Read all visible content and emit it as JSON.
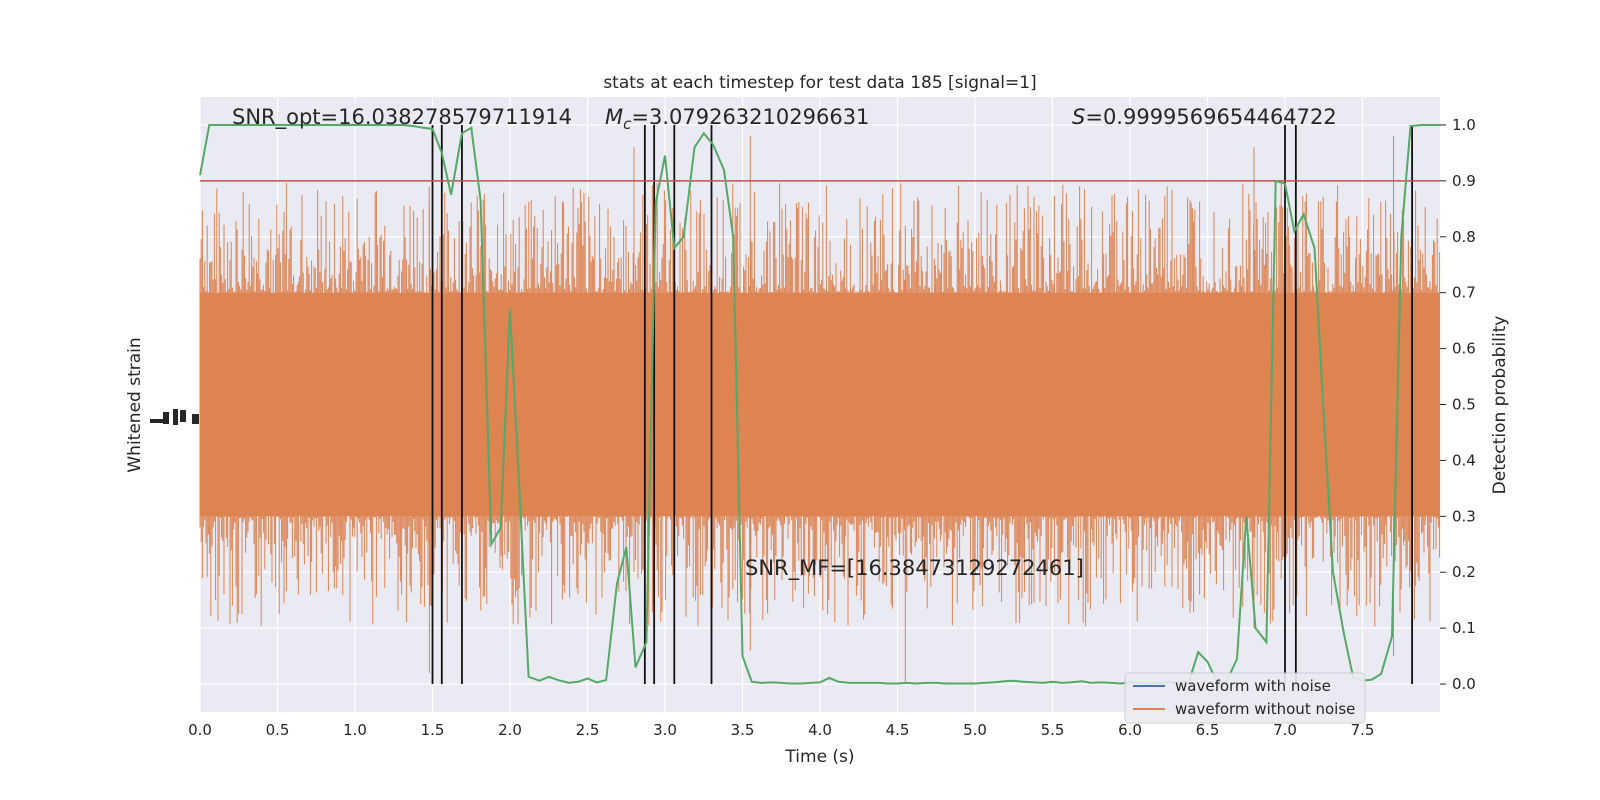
{
  "chart_data": {
    "type": "line",
    "title": "stats at each timestep for test data 185 [signal=1]",
    "xlabel": "Time (s)",
    "ylabel_left": "Whitened strain",
    "ylabel_right": "Detection probability",
    "xlim": [
      0.0,
      8.0
    ],
    "ylim_right": [
      -0.05,
      1.05
    ],
    "x_ticks": [
      "0.0",
      "0.5",
      "1.0",
      "1.5",
      "2.0",
      "2.5",
      "3.0",
      "3.5",
      "4.0",
      "4.5",
      "5.0",
      "5.5",
      "6.0",
      "6.5",
      "7.0",
      "7.5"
    ],
    "y_ticks_right": [
      "0.0",
      "0.1",
      "0.2",
      "0.3",
      "0.4",
      "0.5",
      "0.6",
      "0.7",
      "0.8",
      "0.9",
      "1.0"
    ],
    "grid": true,
    "threshold": 0.9,
    "annotations": {
      "snr_opt": "SNR_opt=16.038278579711914",
      "mc_symbol": "M",
      "mc_sub": "c",
      "mc_value": "=3.079263210296631",
      "s_symbol": "S",
      "s_value": "=0.9999569654464722",
      "snr_mf": "SNR_MF=[16.38473129272461]"
    },
    "legend": {
      "placement": "lower-right",
      "entries": [
        "waveform with noise",
        "waveform without noise"
      ]
    },
    "vertical_lines": [
      1.5,
      1.56,
      1.69,
      2.87,
      2.93,
      3.06,
      3.3,
      7.0,
      7.07,
      7.82
    ],
    "series": [
      {
        "name": "waveform without noise",
        "kind": "strain",
        "color": "#dd8452",
        "band": [
          0.3,
          0.7
        ],
        "extent": [
          0.0,
          1.0
        ]
      },
      {
        "name": "waveform with noise",
        "kind": "strain",
        "color": "#4c72b0"
      },
      {
        "kind": "probability",
        "color": "#55a868",
        "x": [
          0.0,
          0.06,
          0.12,
          0.19,
          0.25,
          0.31,
          0.38,
          0.44,
          0.5,
          0.56,
          0.62,
          0.69,
          0.75,
          0.81,
          0.88,
          0.94,
          1.0,
          1.06,
          1.12,
          1.19,
          1.25,
          1.31,
          1.38,
          1.44,
          1.5,
          1.56,
          1.62,
          1.69,
          1.75,
          1.81,
          1.88,
          1.94,
          2.0,
          2.06,
          2.12,
          2.19,
          2.25,
          2.31,
          2.38,
          2.44,
          2.5,
          2.56,
          2.62,
          2.69,
          2.75,
          2.81,
          2.88,
          2.94,
          3.0,
          3.06,
          3.12,
          3.19,
          3.25,
          3.31,
          3.38,
          3.44,
          3.5,
          3.56,
          3.62,
          3.69,
          3.75,
          3.81,
          3.88,
          3.94,
          4.0,
          4.06,
          4.12,
          4.19,
          4.25,
          4.31,
          4.38,
          4.44,
          4.5,
          4.56,
          4.62,
          4.69,
          4.75,
          4.81,
          4.88,
          4.94,
          5.0,
          5.06,
          5.12,
          5.19,
          5.25,
          5.31,
          5.38,
          5.44,
          5.5,
          5.56,
          5.62,
          5.69,
          5.75,
          5.81,
          5.88,
          5.94,
          6.0,
          6.06,
          6.12,
          6.19,
          6.25,
          6.31,
          6.38,
          6.44,
          6.5,
          6.56,
          6.62,
          6.69,
          6.75,
          6.81,
          6.88,
          6.94,
          7.0,
          7.06,
          7.12,
          7.19,
          7.25,
          7.31,
          7.38,
          7.44,
          7.5,
          7.56,
          7.62,
          7.69,
          7.75,
          7.81,
          7.88,
          7.94,
          8.0
        ],
        "values": [
          0.91,
          1.0,
          1.0,
          1.0,
          1.0,
          1.0,
          1.0,
          1.0,
          1.0,
          1.0,
          1.0,
          1.0,
          1.0,
          1.0,
          1.0,
          1.0,
          1.0,
          1.0,
          1.0,
          1.0,
          1.0,
          1.0,
          0.998,
          0.995,
          0.993,
          0.95,
          0.875,
          0.985,
          0.995,
          0.865,
          0.25,
          0.28,
          0.67,
          0.35,
          0.013,
          0.006,
          0.013,
          0.007,
          0.002,
          0.004,
          0.01,
          0.003,
          0.007,
          0.18,
          0.245,
          0.03,
          0.075,
          0.86,
          0.945,
          0.78,
          0.8,
          0.96,
          0.985,
          0.965,
          0.92,
          0.8,
          0.05,
          0.004,
          0.002,
          0.003,
          0.002,
          0.001,
          0.001,
          0.002,
          0.003,
          0.011,
          0.004,
          0.002,
          0.002,
          0.002,
          0.002,
          0.001,
          0.001,
          0.002,
          0.001,
          0.002,
          0.002,
          0.001,
          0.001,
          0.001,
          0.001,
          0.002,
          0.003,
          0.005,
          0.006,
          0.004,
          0.003,
          0.002,
          0.004,
          0.002,
          0.003,
          0.005,
          0.002,
          0.003,
          0.002,
          0.001,
          0.003,
          0.002,
          0.001,
          0.002,
          0.003,
          0.002,
          0.004,
          0.057,
          0.04,
          0.005,
          0.003,
          0.045,
          0.3,
          0.1,
          0.075,
          0.9,
          0.895,
          0.81,
          0.84,
          0.78,
          0.48,
          0.2,
          0.09,
          0.012,
          0.006,
          0.008,
          0.018,
          0.085,
          0.8,
          0.998,
          1.0,
          1.0,
          1.0
        ]
      }
    ]
  }
}
